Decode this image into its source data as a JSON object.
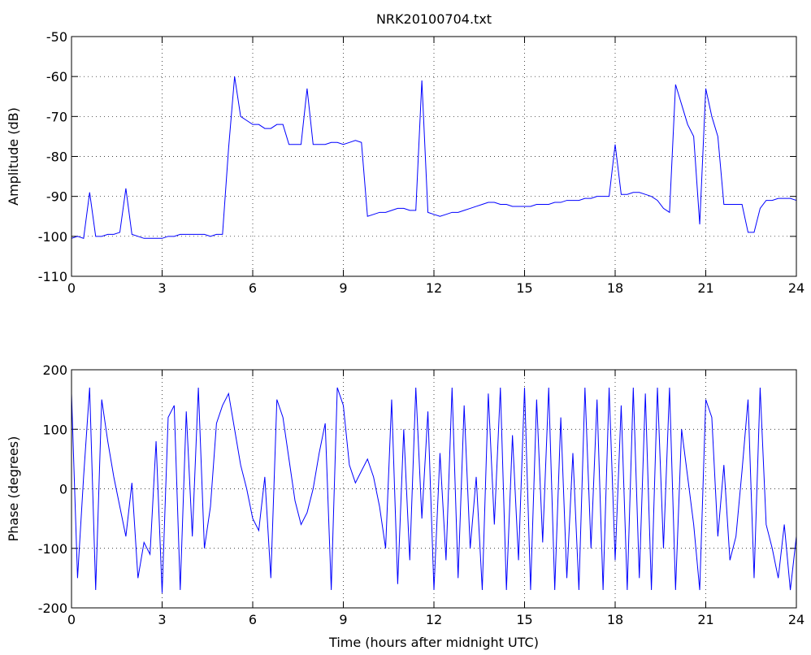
{
  "chart_data": [
    {
      "type": "line",
      "title": "NRK20100704.txt",
      "y_label": "Amplitude (dB)",
      "x": [
        0,
        0.2,
        0.4,
        0.6,
        0.8,
        1,
        1.2,
        1.4,
        1.6,
        1.8,
        2,
        2.2,
        2.4,
        2.6,
        2.8,
        3,
        3.2,
        3.4,
        3.6,
        3.8,
        4,
        4.2,
        4.4,
        4.6,
        4.8,
        5,
        5.2,
        5.4,
        5.6,
        5.8,
        6,
        6.2,
        6.4,
        6.6,
        6.8,
        7,
        7.2,
        7.4,
        7.6,
        7.8,
        8,
        8.2,
        8.4,
        8.6,
        8.8,
        9,
        9.2,
        9.4,
        9.6,
        9.8,
        10,
        10.2,
        10.4,
        10.6,
        10.8,
        11,
        11.2,
        11.4,
        11.6,
        11.8,
        12,
        12.2,
        12.4,
        12.6,
        12.8,
        13,
        13.2,
        13.4,
        13.6,
        13.8,
        14,
        14.2,
        14.4,
        14.6,
        14.8,
        15,
        15.2,
        15.4,
        15.6,
        15.8,
        16,
        16.2,
        16.4,
        16.6,
        16.8,
        17,
        17.2,
        17.4,
        17.6,
        17.8,
        18,
        18.2,
        18.4,
        18.6,
        18.8,
        19,
        19.2,
        19.4,
        19.6,
        19.8,
        20,
        20.2,
        20.4,
        20.6,
        20.8,
        21,
        21.2,
        21.4,
        21.6,
        21.8,
        22,
        22.2,
        22.4,
        22.6,
        22.8,
        23,
        23.2,
        23.4,
        23.6,
        23.8,
        24
      ],
      "series": [
        {
          "color": "#0000ff",
          "values": [
            -100.5,
            -100,
            -100.5,
            -89,
            -100,
            -100,
            -99.5,
            -99.5,
            -99,
            -88,
            -99.5,
            -100,
            -100.5,
            -100.5,
            -100.5,
            -100.5,
            -100,
            -100,
            -99.5,
            -99.5,
            -99.5,
            -99.5,
            -99.5,
            -100,
            -99.5,
            -99.5,
            -78,
            -60,
            -70,
            -71,
            -72,
            -72,
            -73,
            -73,
            -72,
            -72,
            -77,
            -77,
            -77,
            -63,
            -77,
            -77,
            -77,
            -76.5,
            -76.5,
            -77,
            -76.5,
            -76,
            -76.5,
            -95,
            -94.5,
            -94,
            -94,
            -93.5,
            -93,
            -93,
            -93.5,
            -93.5,
            -61,
            -94,
            -94.5,
            -95,
            -94.5,
            -94,
            -94,
            -93.5,
            -93,
            -92.5,
            -92,
            -91.5,
            -91.5,
            -92,
            -92,
            -92.5,
            -92.5,
            -92.5,
            -92.5,
            -92,
            -92,
            -92,
            -91.5,
            -91.5,
            -91,
            -91,
            -91,
            -90.5,
            -90.5,
            -90,
            -90,
            -90,
            -77,
            -89.5,
            -89.5,
            -89,
            -89,
            -89.5,
            -90,
            -91,
            -93,
            -94,
            -62,
            -67,
            -72,
            -75,
            -97,
            -63,
            -70,
            -75,
            -92,
            -92,
            -92,
            -92,
            -99,
            -99,
            -93,
            -91,
            -91,
            -90.5,
            -90.5,
            -90.5,
            -91
          ]
        }
      ],
      "xlim": [
        0,
        24
      ],
      "xticks": [
        0,
        3,
        6,
        9,
        12,
        15,
        18,
        21,
        24
      ],
      "ylim": [
        -110,
        -50
      ],
      "yticks": [
        -110,
        -100,
        -90,
        -80,
        -70,
        -60,
        -50
      ],
      "grid": true
    },
    {
      "type": "line",
      "x_label": "Time (hours after midnight UTC)",
      "y_label": "Phase (degrees)",
      "x": [
        0,
        0.2,
        0.4,
        0.6,
        0.8,
        1,
        1.2,
        1.4,
        1.6,
        1.8,
        2,
        2.2,
        2.4,
        2.6,
        2.8,
        3,
        3.2,
        3.4,
        3.6,
        3.8,
        4,
        4.2,
        4.4,
        4.6,
        4.8,
        5,
        5.2,
        5.4,
        5.6,
        5.8,
        6,
        6.2,
        6.4,
        6.6,
        6.8,
        7,
        7.2,
        7.4,
        7.6,
        7.8,
        8,
        8.2,
        8.4,
        8.6,
        8.8,
        9,
        9.2,
        9.4,
        9.6,
        9.8,
        10,
        10.2,
        10.4,
        10.6,
        10.8,
        11,
        11.2,
        11.4,
        11.6,
        11.8,
        12,
        12.2,
        12.4,
        12.6,
        12.8,
        13,
        13.2,
        13.4,
        13.6,
        13.8,
        14,
        14.2,
        14.4,
        14.6,
        14.8,
        15,
        15.2,
        15.4,
        15.6,
        15.8,
        16,
        16.2,
        16.4,
        16.6,
        16.8,
        17,
        17.2,
        17.4,
        17.6,
        17.8,
        18,
        18.2,
        18.4,
        18.6,
        18.8,
        19,
        19.2,
        19.4,
        19.6,
        19.8,
        20,
        20.2,
        20.4,
        20.6,
        20.8,
        21,
        21.2,
        21.4,
        21.6,
        21.8,
        22,
        22.2,
        22.4,
        22.6,
        22.8,
        23,
        23.2,
        23.4,
        23.6,
        23.8,
        24
      ],
      "series": [
        {
          "color": "#0000ff",
          "values": [
            160,
            -150,
            20,
            170,
            -170,
            150,
            80,
            20,
            -30,
            -80,
            10,
            -150,
            -90,
            -110,
            80,
            -175,
            120,
            140,
            -170,
            130,
            -80,
            170,
            -100,
            -30,
            110,
            140,
            160,
            100,
            40,
            0,
            -50,
            -70,
            20,
            -150,
            150,
            120,
            50,
            -20,
            -60,
            -40,
            0,
            60,
            110,
            -170,
            170,
            140,
            40,
            10,
            30,
            50,
            20,
            -30,
            -100,
            150,
            -160,
            100,
            -120,
            170,
            -50,
            130,
            -170,
            60,
            -120,
            170,
            -150,
            140,
            -100,
            20,
            -170,
            160,
            -60,
            170,
            -170,
            90,
            -120,
            170,
            -170,
            150,
            -90,
            170,
            -170,
            120,
            -150,
            60,
            -170,
            170,
            -100,
            150,
            -170,
            170,
            -120,
            140,
            -170,
            170,
            -150,
            160,
            -170,
            170,
            -100,
            170,
            -170,
            100,
            20,
            -60,
            -170,
            150,
            120,
            -80,
            40,
            -120,
            -80,
            30,
            150,
            -150,
            170,
            -60,
            -100,
            -150,
            -60,
            -170,
            -80
          ]
        }
      ],
      "xlim": [
        0,
        24
      ],
      "xticks": [
        0,
        3,
        6,
        9,
        12,
        15,
        18,
        21,
        24
      ],
      "ylim": [
        -200,
        200
      ],
      "yticks": [
        -200,
        -100,
        0,
        100,
        200
      ],
      "grid": true
    }
  ]
}
